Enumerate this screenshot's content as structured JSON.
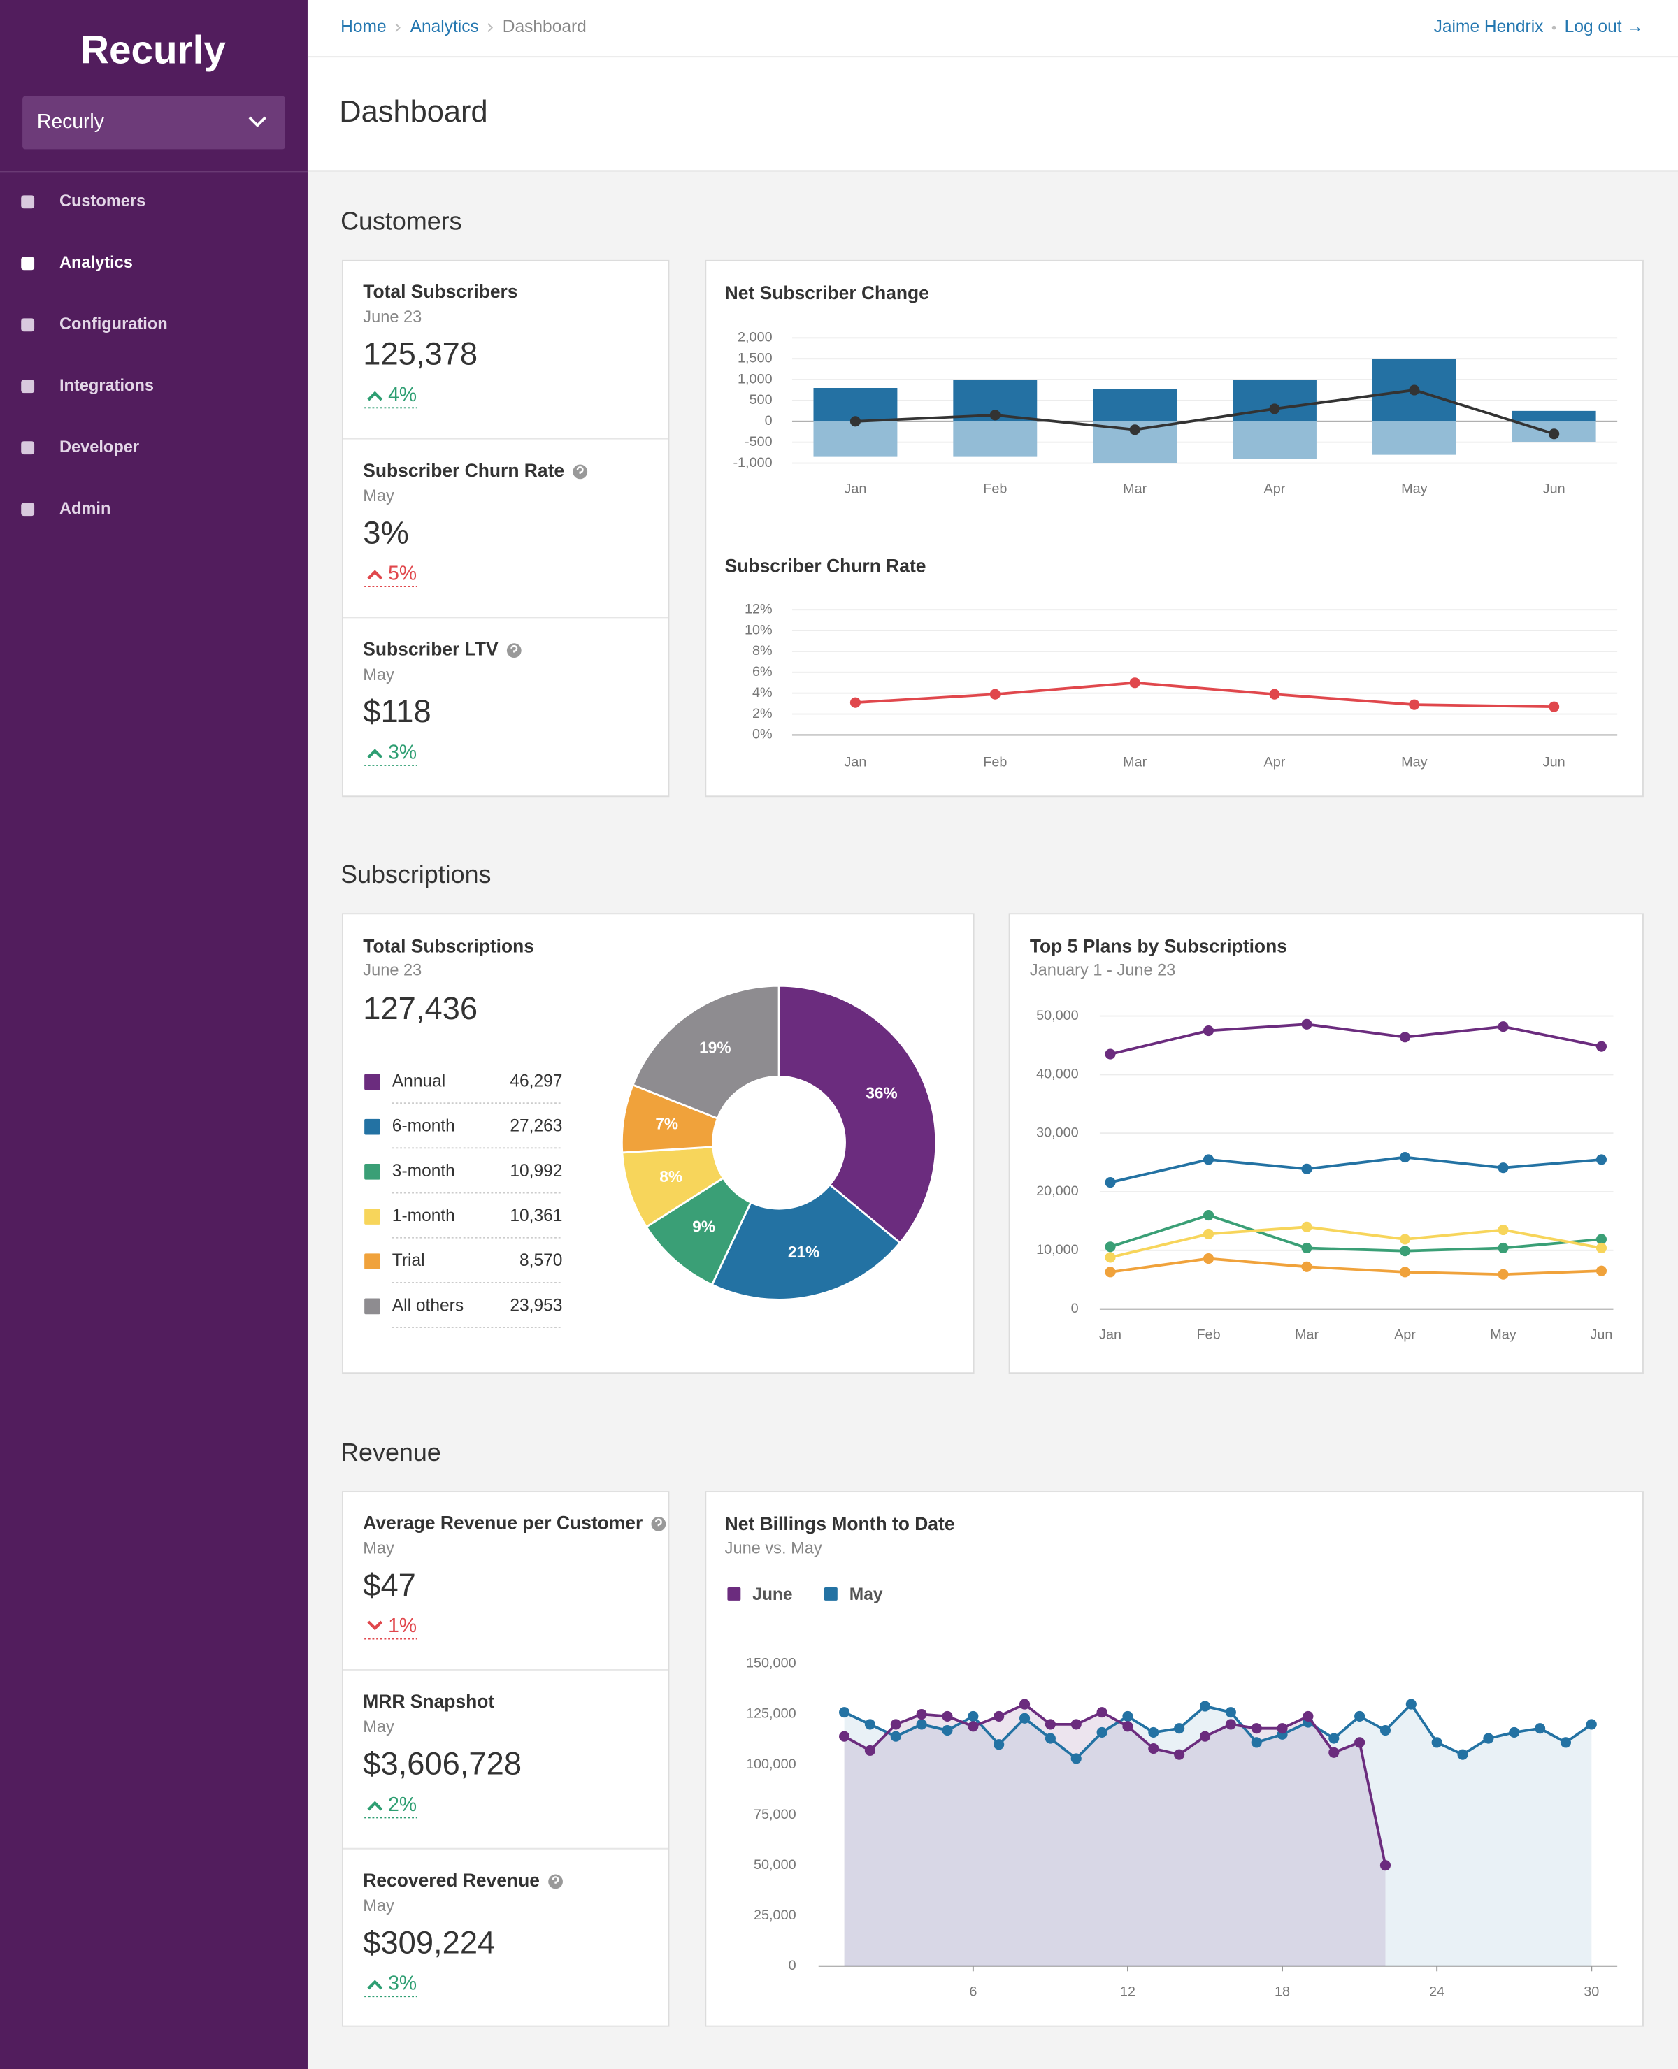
{
  "sidebar": {
    "logo": "Recurly",
    "account": "Recurly",
    "nav": [
      "Customers",
      "Analytics",
      "Configuration",
      "Integrations",
      "Developer",
      "Admin"
    ]
  },
  "header": {
    "breadcrumbs": [
      "Home",
      "Analytics",
      "Dashboard"
    ],
    "user": "Jaime Hendrix",
    "logout": "Log out →"
  },
  "title": "Dashboard",
  "customers": {
    "heading": "Customers",
    "stats": [
      {
        "title": "Total Subscribers",
        "date": "June 23",
        "value": "125,378",
        "change": "4%",
        "trend": "up",
        "color": "#2e9e72"
      },
      {
        "title": "Subscriber Churn Rate",
        "help": true,
        "date": "May",
        "value": "3%",
        "change": "5%",
        "trend": "up",
        "color": "#e0474c"
      },
      {
        "title": "Subscriber LTV",
        "help": true,
        "date": "May",
        "value": "$118",
        "change": "3%",
        "trend": "up",
        "color": "#2e9e72"
      }
    ],
    "net_change": {
      "type": "bar",
      "title": "Net Subscriber Change",
      "categories": [
        "Jan",
        "Feb",
        "Mar",
        "Apr",
        "May",
        "Jun"
      ],
      "series": [
        {
          "type": "bar",
          "color": "#2471a3",
          "values": [
            800,
            1000,
            780,
            1000,
            1500,
            250
          ]
        },
        {
          "type": "bar",
          "color": "#93bcd6",
          "values": [
            -850,
            -850,
            -1000,
            -900,
            -800,
            -500
          ]
        },
        {
          "type": "line",
          "color": "#333333",
          "values": [
            0,
            150,
            -200,
            300,
            750,
            -300
          ]
        }
      ],
      "ylim": [
        -1000,
        2000
      ],
      "yticks": [
        {
          "value": 2000,
          "label": "2,000"
        },
        {
          "value": 1500,
          "label": "1,500"
        },
        {
          "value": 1000,
          "label": "1,000"
        },
        500,
        0,
        -500,
        {
          "value": -1000,
          "label": "-1,000"
        }
      ],
      "grid": true
    },
    "churn": {
      "type": "line",
      "title": "Subscriber Churn Rate",
      "categories": [
        "Jan",
        "Feb",
        "Mar",
        "Apr",
        "May",
        "Jun"
      ],
      "values": [
        3.1,
        3.9,
        5,
        3.9,
        2.9,
        2.7
      ],
      "color": "#e0474c",
      "ylim": [
        0,
        12
      ],
      "yticks": [
        {
          "value": 12,
          "label": "12%"
        },
        {
          "value": 10,
          "label": "10%"
        },
        {
          "value": 8,
          "label": "8%"
        },
        {
          "value": 6,
          "label": "6%"
        },
        {
          "value": 4,
          "label": "4%"
        },
        {
          "value": 2,
          "label": "2%"
        },
        {
          "value": 0,
          "label": "0%"
        }
      ],
      "grid": true
    }
  },
  "subscriptions": {
    "heading": "Subscriptions",
    "total": {
      "type": "pie",
      "title": "Total Subscriptions",
      "date": "June 23",
      "value": "127,436",
      "categories": [
        "Annual",
        "6-month",
        "3-month",
        "1-month",
        "Trial",
        "All others"
      ],
      "counts": [
        "46,297",
        "27,263",
        "10,992",
        "10,361",
        "8,570",
        "23,953"
      ],
      "values": [
        36,
        21,
        9,
        8,
        7,
        19
      ],
      "value_labels": [
        "36%",
        "21%",
        "9%",
        "8%",
        "7%",
        "19%"
      ],
      "colors": [
        "#6b2c7e",
        "#2372a3",
        "#3a9f76",
        "#f7d55b",
        "#f0a23b",
        "#8e8c90"
      ]
    },
    "plans": {
      "type": "line",
      "title": "Top 5 Plans by Subscriptions",
      "subtitle": "January 1 - June 23",
      "categories": [
        "Jan",
        "Feb",
        "Mar",
        "Apr",
        "May",
        "Jun"
      ],
      "series": [
        {
          "color": "#6b2c7e",
          "values": [
            43500,
            47500,
            48600,
            46400,
            48200,
            44800
          ]
        },
        {
          "color": "#2372a3",
          "values": [
            21600,
            25500,
            23900,
            25900,
            24100,
            25500
          ]
        },
        {
          "color": "#3a9f76",
          "values": [
            10600,
            16000,
            10400,
            9900,
            10400,
            11900
          ]
        },
        {
          "color": "#f7d55b",
          "values": [
            8800,
            12800,
            14000,
            11900,
            13500,
            10400
          ]
        },
        {
          "color": "#f0a23b",
          "values": [
            6300,
            8600,
            7200,
            6300,
            5900,
            6500
          ]
        }
      ],
      "ylim": [
        0,
        50000
      ],
      "yticks": [
        0,
        {
          "value": 10000,
          "label": "10,000"
        },
        {
          "value": 20000,
          "label": "20,000"
        },
        {
          "value": 30000,
          "label": "30,000"
        },
        {
          "value": 40000,
          "label": "40,000"
        },
        {
          "value": 50000,
          "label": "50,000"
        }
      ],
      "grid": true
    }
  },
  "revenue": {
    "heading": "Revenue",
    "stats": [
      {
        "title": "Average Revenue per Customer",
        "help": true,
        "date": "May",
        "value": "$47",
        "change": "1%",
        "trend": "down",
        "color": "#e0474c"
      },
      {
        "title": "MRR Snapshot",
        "date": "May",
        "value": "$3,606,728",
        "change": "2%",
        "trend": "up",
        "color": "#2e9e72"
      },
      {
        "title": "Recovered Revenue",
        "help": true,
        "date": "May",
        "value": "$309,224",
        "change": "3%",
        "trend": "up",
        "color": "#2e9e72"
      }
    ],
    "billings": {
      "type": "line",
      "title": "Net Billings Month to Date",
      "subtitle": "June vs. May",
      "x": [
        1,
        2,
        3,
        4,
        5,
        6,
        7,
        8,
        9,
        10,
        11,
        12,
        13,
        14,
        15,
        16,
        17,
        18,
        19,
        20,
        21,
        22,
        23,
        24,
        25,
        26,
        27,
        28,
        29,
        30
      ],
      "xlim": [
        0,
        31
      ],
      "xticks": [
        6,
        12,
        18,
        24,
        30
      ],
      "ylim": [
        0,
        150000
      ],
      "yticks": [
        0,
        {
          "value": 25000,
          "label": "25,000"
        },
        {
          "value": 50000,
          "label": "50,000"
        },
        {
          "value": 75000,
          "label": "75,000"
        },
        {
          "value": 100000,
          "label": "100,000"
        },
        {
          "value": 125000,
          "label": "125,000"
        },
        {
          "value": 150000,
          "label": "150,000"
        }
      ],
      "grid": false,
      "area": true,
      "legend": "top-left",
      "series": [
        {
          "name": "June",
          "color": "#6b2c7e",
          "values": [
            114000,
            107000,
            120000,
            125000,
            124000,
            119000,
            124000,
            130000,
            120000,
            120000,
            126000,
            119000,
            108000,
            105000,
            114000,
            120000,
            118000,
            118000,
            124000,
            106000,
            111000,
            50000,
            null,
            null,
            null,
            null,
            null,
            null,
            null,
            null
          ]
        },
        {
          "name": "May",
          "color": "#2372a3",
          "values": [
            126000,
            120000,
            114000,
            120000,
            117000,
            124000,
            110000,
            123000,
            113000,
            103000,
            116000,
            124000,
            116000,
            118000,
            129000,
            126000,
            111000,
            115000,
            121000,
            113000,
            124000,
            117000,
            130000,
            111000,
            105000,
            113000,
            116000,
            118000,
            111000,
            120000
          ]
        }
      ]
    }
  }
}
